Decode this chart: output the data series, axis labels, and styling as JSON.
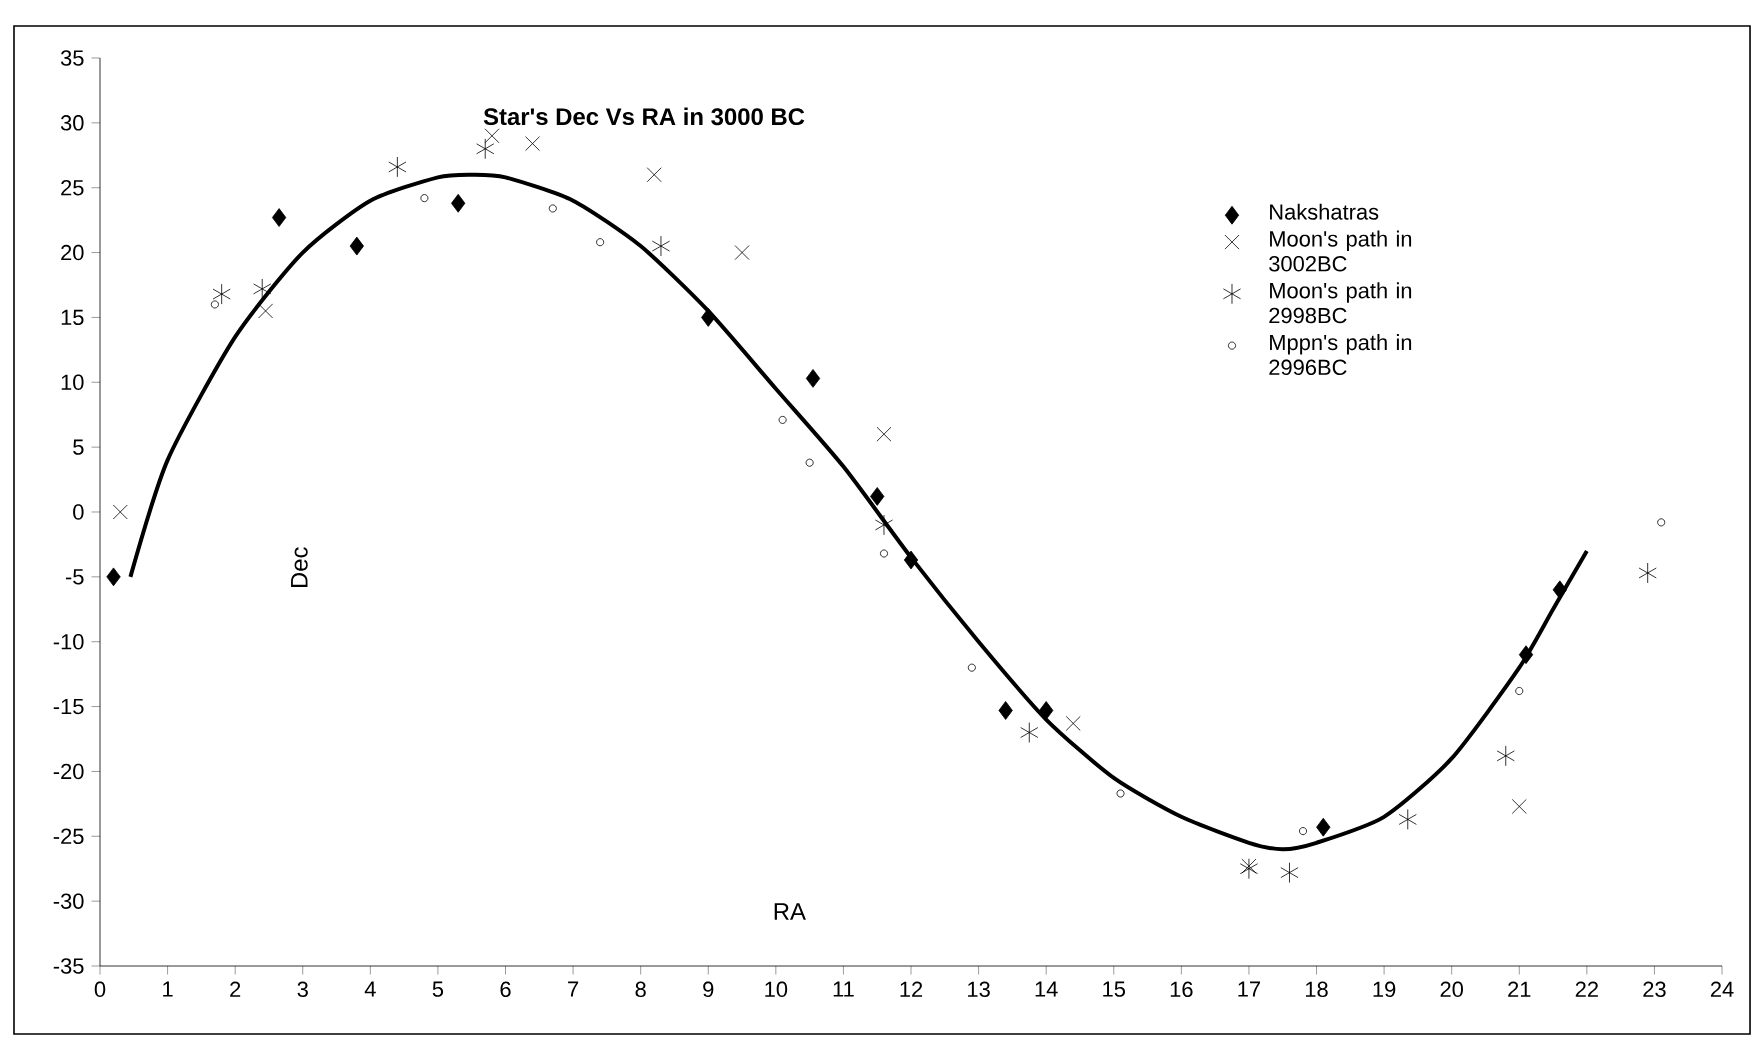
{
  "chart_data": {
    "type": "scatter",
    "title": "Star's Dec Vs RA in 3000 BC",
    "xlabel": "RA",
    "ylabel": "Dec",
    "xlim": [
      0,
      24
    ],
    "ylim": [
      -35,
      35
    ],
    "xticks": [
      0,
      1,
      2,
      3,
      4,
      5,
      6,
      7,
      8,
      9,
      10,
      11,
      12,
      13,
      14,
      15,
      16,
      17,
      18,
      19,
      20,
      21,
      22,
      23,
      24
    ],
    "yticks": [
      -35,
      -30,
      -25,
      -20,
      -15,
      -10,
      -5,
      0,
      5,
      10,
      15,
      20,
      25,
      30,
      35
    ],
    "legend": "right",
    "grid": false,
    "series": [
      {
        "name": "Nakshatras",
        "color": "#000000",
        "marker": "diamond",
        "x": [
          0.2,
          2.65,
          3.8,
          5.3,
          9.0,
          10.55,
          11.5,
          12.0,
          13.4,
          14.0,
          18.1,
          21.1,
          21.6
        ],
        "values": [
          -5,
          22.7,
          20.5,
          23.8,
          15,
          10.3,
          1.2,
          -3.7,
          -15.3,
          -15.3,
          -24.3,
          -11,
          -6
        ]
      },
      {
        "name": "Moon's path in 3002BC",
        "color": "#000000",
        "marker": "cross",
        "x": [
          0.3,
          2.45,
          5.8,
          6.4,
          8.2,
          9.5,
          11.6,
          14.4,
          17.0,
          21.0
        ],
        "values": [
          0,
          15.5,
          29,
          28.4,
          26,
          20,
          6,
          -16.3,
          -27.3,
          -22.7
        ]
      },
      {
        "name": "Moon's path in 2998BC",
        "color": "#000000",
        "x": [
          1.8,
          2.4,
          4.4,
          5.7,
          8.3,
          11.6,
          13.75,
          17.0,
          17.6,
          19.35,
          20.8,
          22.9
        ],
        "values": [
          16.8,
          17.2,
          26.6,
          28,
          20.5,
          -1,
          -17,
          -27.5,
          -27.8,
          -23.7,
          -18.8,
          -4.7
        ]
      },
      {
        "name": "Mppn's path in 2996BC",
        "color": "#000000",
        "marker": "circle",
        "x": [
          1.7,
          4.8,
          6.7,
          7.4,
          10.1,
          10.5,
          11.6,
          12.9,
          15.1,
          17.8,
          21.0,
          23.1
        ],
        "values": [
          16,
          24.2,
          23.4,
          20.8,
          7.1,
          3.8,
          -3.2,
          -12,
          -21.7,
          -24.6,
          -13.8,
          -0.8
        ]
      },
      {
        "type": "line",
        "color": "#000000",
        "marker": "none",
        "line_style": "solid",
        "x": [
          0.45,
          1,
          2,
          3,
          4,
          5,
          5.5,
          6,
          7,
          8,
          9,
          10,
          11,
          12,
          13,
          14,
          15,
          16,
          17,
          17.5,
          18,
          19,
          20,
          21,
          21.5,
          22
        ],
        "values": [
          -5,
          4,
          13.5,
          20,
          24,
          25.8,
          26,
          25.8,
          24,
          20.5,
          15.5,
          9.5,
          3.5,
          -3.5,
          -10,
          -16,
          -20.5,
          -23.5,
          -25.5,
          -26,
          -25.5,
          -23.5,
          -19,
          -12,
          -7.5,
          -3
        ]
      }
    ]
  }
}
